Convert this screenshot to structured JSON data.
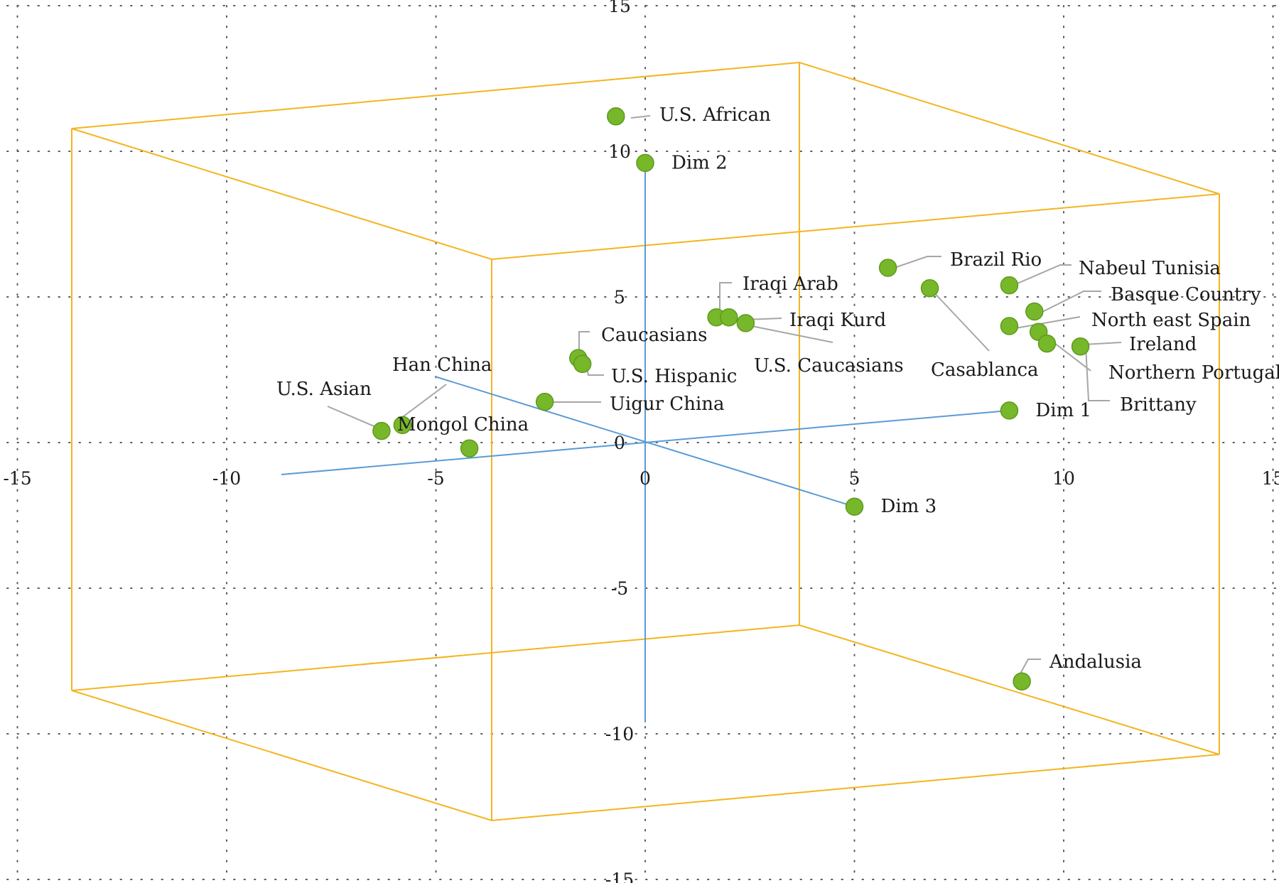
{
  "chart_data": {
    "type": "scatter",
    "title": "",
    "xlabel": "",
    "ylabel": "",
    "xlim": [
      -15,
      15
    ],
    "ylim": [
      -15,
      15
    ],
    "xticks": [
      -15,
      -10,
      -5,
      0,
      5,
      10,
      15
    ],
    "yticks": [
      15,
      10,
      5,
      0,
      -5,
      -10,
      -15
    ],
    "grid": true,
    "colors": {
      "marker": "#77b82a",
      "box": "#f5b41e",
      "axis": "#5b9bd5",
      "leader": "#a6a6a6"
    },
    "axis_endpoints": [
      {
        "name": "Dim 2",
        "x": 0.0,
        "y": 9.6
      },
      {
        "name": "Dim 1",
        "x": 8.7,
        "y": 1.1
      },
      {
        "name": "Dim 3",
        "x": 5.0,
        "y": -2.2
      }
    ],
    "points": [
      {
        "label": "U.S. African",
        "x": -0.7,
        "y": 11.2
      },
      {
        "label": "Brazil Rio",
        "x": 5.8,
        "y": 6.0
      },
      {
        "label": "Casablanca",
        "x": 6.8,
        "y": 5.3
      },
      {
        "label": "Nabeul Tunisia",
        "x": 8.7,
        "y": 5.4
      },
      {
        "label": "Basque Country",
        "x": 9.3,
        "y": 4.5
      },
      {
        "label": "North east Spain",
        "x": 8.7,
        "y": 4.0
      },
      {
        "label": "Ireland",
        "x": 10.4,
        "y": 3.3
      },
      {
        "label": "Northern Portugal",
        "x": 9.4,
        "y": 3.8
      },
      {
        "label": "Brittany",
        "x": 9.6,
        "y": 3.4
      },
      {
        "label": "Iraqi Arab",
        "x": 1.7,
        "y": 4.3
      },
      {
        "label": "Iraqi Kurd",
        "x": 2.0,
        "y": 4.3
      },
      {
        "label": "U.S. Caucasians",
        "x": 2.4,
        "y": 4.1
      },
      {
        "label": "Caucasians",
        "x": -1.6,
        "y": 2.9
      },
      {
        "label": "U.S. Hispanic",
        "x": -1.5,
        "y": 2.7
      },
      {
        "label": "Uigur China",
        "x": -2.4,
        "y": 1.4
      },
      {
        "label": "Han China",
        "x": -5.8,
        "y": 0.6
      },
      {
        "label": "U.S. Asian",
        "x": -6.3,
        "y": 0.4
      },
      {
        "label": "Mongol China",
        "x": -4.2,
        "y": -0.2
      },
      {
        "label": "Andalusia",
        "x": 9.0,
        "y": -8.2
      }
    ]
  }
}
